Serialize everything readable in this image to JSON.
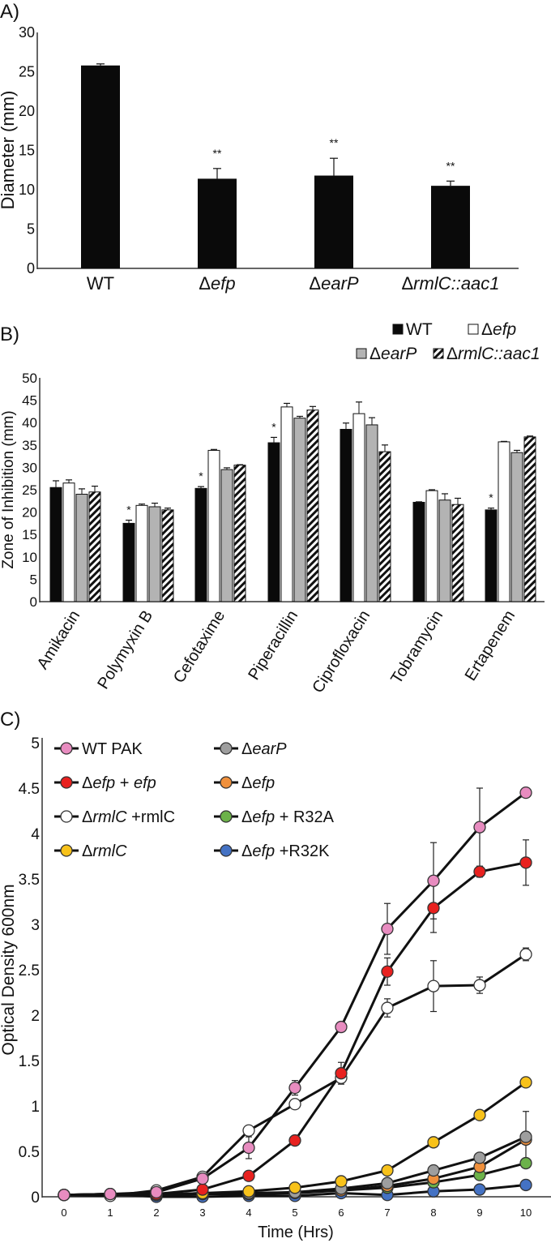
{
  "chart_data": [
    {
      "panel_label": "A)",
      "type": "bar",
      "title": "",
      "xlabel": "",
      "ylabel": "Diameter (mm)",
      "ylim": [
        0,
        30
      ],
      "yticks": [
        "0",
        "5",
        "10",
        "15",
        "20",
        "25",
        "30"
      ],
      "categories": [
        {
          "parts": [
            [
              "WT",
              0
            ]
          ]
        },
        {
          "parts": [
            [
              "Δ",
              0
            ],
            [
              "efp",
              1
            ]
          ]
        },
        {
          "parts": [
            [
              "Δ",
              0
            ],
            [
              "earP",
              1
            ]
          ]
        },
        {
          "parts": [
            [
              "Δ",
              0
            ],
            [
              "rmlC::aac1",
              1
            ]
          ]
        }
      ],
      "values": [
        25.8,
        11.4,
        11.8,
        10.5
      ],
      "errors": [
        0.2,
        1.3,
        2.2,
        0.6
      ],
      "annotations": [
        "",
        "**",
        "**",
        "**"
      ],
      "color": "#0a0a0a"
    },
    {
      "panel_label": "B)",
      "type": "bar",
      "xlabel": "",
      "ylabel": "Zone of Inhibition (mm)",
      "ylim": [
        0,
        50
      ],
      "yticks": [
        "0",
        "5",
        "10",
        "15",
        "20",
        "25",
        "30",
        "35",
        "40",
        "45",
        "50"
      ],
      "legend_placement": "top-right",
      "categories": [
        "Amikacin",
        "Polymyxin B",
        "Cefotaxime",
        "Piperacillin",
        "Ciprofloxacin",
        "Tobramycin",
        "Ertapenem"
      ],
      "series": [
        {
          "parts": [
            [
              "WT",
              0
            ]
          ],
          "fill": "#0a0a0a",
          "values": [
            25.5,
            17.5,
            25.3,
            35.5,
            38.5,
            22.2,
            20.5
          ],
          "errors": [
            1.5,
            0.7,
            0.4,
            1.2,
            1.4,
            0.1,
            0.4
          ]
        },
        {
          "parts": [
            [
              "Δ",
              0
            ],
            [
              "efp",
              1
            ]
          ],
          "fill": "#ffffff",
          "values": [
            26.5,
            21.5,
            33.8,
            43.5,
            42.0,
            24.8,
            35.7
          ],
          "errors": [
            0.7,
            0.3,
            0.2,
            0.8,
            2.6,
            0.2,
            0.1
          ]
        },
        {
          "parts": [
            [
              "Δ",
              0
            ],
            [
              "earP",
              1
            ]
          ],
          "fill": "#b3b3b3",
          "values": [
            24.0,
            21.2,
            29.5,
            41.0,
            39.5,
            22.7,
            33.3
          ],
          "errors": [
            1.2,
            0.8,
            0.4,
            0.4,
            1.6,
            1.4,
            0.5
          ]
        },
        {
          "parts": [
            [
              "Δ",
              0
            ],
            [
              "rmlC::aac1",
              1
            ]
          ],
          "fill": "hatch",
          "values": [
            24.5,
            20.5,
            30.5,
            42.8,
            33.5,
            21.7,
            36.8
          ],
          "errors": [
            1.3,
            0.4,
            0.1,
            0.8,
            1.5,
            1.4,
            0.2
          ]
        }
      ],
      "annotations": [
        "",
        "*",
        "*",
        "*",
        "",
        "",
        "*"
      ]
    },
    {
      "panel_label": "C)",
      "type": "line",
      "xlabel": "Time (Hrs)",
      "ylabel": "Optical Density 600nm",
      "xlim": [
        0,
        10
      ],
      "ylim": [
        0,
        5
      ],
      "x": [
        0,
        1,
        2,
        3,
        4,
        5,
        6,
        7,
        8,
        9,
        10
      ],
      "xticks": [
        "0",
        "1",
        "2",
        "3",
        "4",
        "5",
        "6",
        "7",
        "8",
        "9",
        "10"
      ],
      "yticks": [
        "0",
        "0.5",
        "1",
        "1.5",
        "2",
        "2.5",
        "3",
        "3.5",
        "4",
        "4.5",
        "5"
      ],
      "legend_placement": "top-left",
      "series": [
        {
          "parts": [
            [
              "WT PAK",
              0
            ]
          ],
          "color": "#e88cc0",
          "values": [
            0.02,
            0.03,
            0.05,
            0.2,
            0.54,
            1.2,
            1.87,
            2.95,
            3.48,
            4.07,
            4.45
          ],
          "errors": [
            0,
            0,
            0,
            0,
            0.12,
            0.08,
            0.05,
            0.28,
            0.42,
            0.43,
            0.05
          ]
        },
        {
          "parts": [
            [
              "Δ",
              0
            ],
            [
              "earP",
              1
            ]
          ],
          "color": "#9e9e9e",
          "values": [
            0.02,
            0.03,
            0.02,
            0.03,
            0.04,
            0.05,
            0.09,
            0.15,
            0.29,
            0.43,
            0.66
          ],
          "errors": [
            0,
            0,
            0,
            0,
            0,
            0,
            0,
            0,
            0,
            0,
            0.28
          ]
        },
        {
          "parts": [
            [
              "Δ",
              0
            ],
            [
              "efp",
              1
            ],
            [
              " + ",
              0
            ],
            [
              "efp",
              1
            ]
          ],
          "color": "#e8211f",
          "values": [
            0.02,
            0.03,
            0.03,
            0.08,
            0.23,
            0.62,
            1.36,
            2.48,
            3.18,
            3.58,
            3.68
          ],
          "errors": [
            0,
            0,
            0,
            0,
            0,
            0,
            0.12,
            0.15,
            0.27,
            0.06,
            0.25
          ]
        },
        {
          "parts": [
            [
              "Δ",
              0
            ],
            [
              "efp",
              1
            ]
          ],
          "color": "#f0903c",
          "values": [
            0.02,
            0.02,
            0.02,
            0.03,
            0.03,
            0.04,
            0.07,
            0.12,
            0.2,
            0.33,
            0.63
          ],
          "errors": [
            0,
            0,
            0,
            0,
            0,
            0,
            0,
            0,
            0,
            0,
            0
          ]
        },
        {
          "parts": [
            [
              "Δ",
              0
            ],
            [
              "rmlC",
              1
            ],
            [
              " +rmlC",
              0
            ]
          ],
          "color": "#ffffff",
          "values": [
            0.02,
            0.01,
            0.07,
            0.22,
            0.73,
            1.02,
            1.31,
            2.08,
            2.32,
            2.33,
            2.67
          ],
          "errors": [
            0,
            0,
            0,
            0,
            0,
            0,
            0,
            0.1,
            0.28,
            0.09,
            0.07
          ]
        },
        {
          "parts": [
            [
              "Δ",
              0
            ],
            [
              "efp",
              1
            ],
            [
              " + R32A",
              0
            ]
          ],
          "color": "#6cb24a",
          "values": [
            0.02,
            0.02,
            0.02,
            0.04,
            0.03,
            0.05,
            0.07,
            0.1,
            0.16,
            0.24,
            0.37
          ],
          "errors": [
            0,
            0,
            0,
            0,
            0,
            0,
            0,
            0,
            0,
            0,
            0
          ]
        },
        {
          "parts": [
            [
              "Δ",
              0
            ],
            [
              "rmlC",
              1
            ]
          ],
          "color": "#f8c21a",
          "values": [
            0.02,
            0.02,
            0.02,
            0.04,
            0.06,
            0.1,
            0.17,
            0.29,
            0.6,
            0.9,
            1.26
          ],
          "errors": [
            0,
            0,
            0,
            0,
            0,
            0,
            0,
            0,
            0,
            0,
            0
          ]
        },
        {
          "parts": [
            [
              "Δ",
              0
            ],
            [
              "efp",
              1
            ],
            [
              " +R32K",
              0
            ]
          ],
          "color": "#4472c4",
          "values": [
            0.02,
            0.03,
            0.0,
            0.0,
            0.01,
            0.01,
            0.04,
            0.02,
            0.06,
            0.08,
            0.13
          ],
          "errors": [
            0,
            0,
            0,
            0,
            0,
            0,
            0,
            0,
            0,
            0,
            0
          ]
        }
      ]
    }
  ]
}
